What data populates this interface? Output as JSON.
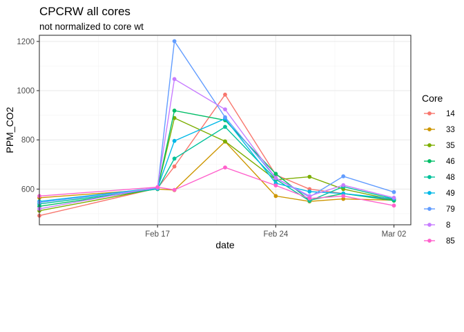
{
  "chart_data": {
    "type": "line",
    "title": "CPCRW all cores",
    "subtitle": "not normalized to core wt",
    "xlabel": "date",
    "ylabel": "PPM_CO2",
    "legend_title": "Core",
    "legend_position": "right",
    "grid": true,
    "x_ticks": [
      "Feb 17",
      "Feb 24",
      "Mar 02"
    ],
    "y_ticks": [
      600,
      800,
      1000,
      1200
    ],
    "x_axis_range": [
      "Feb 10",
      "Mar 03"
    ],
    "ylim": [
      455,
      1225
    ],
    "x": [
      "Feb 10",
      "Feb 17",
      "Feb 18",
      "Feb 21",
      "Feb 24",
      "Feb 26",
      "Feb 28",
      "Mar 02"
    ],
    "series": [
      {
        "name": "14",
        "color": "#F8766D",
        "values": [
          492,
          604,
          692,
          984,
          658,
          600,
          582,
          557
        ]
      },
      {
        "name": "33",
        "color": "#CD9600",
        "values": [
          565,
          600,
          596,
          793,
          572,
          550,
          560,
          555
        ]
      },
      {
        "name": "35",
        "color": "#7CAE00",
        "values": [
          512,
          602,
          889,
          794,
          638,
          650,
          600,
          556
        ]
      },
      {
        "name": "46",
        "color": "#00BE67",
        "values": [
          530,
          601,
          919,
          880,
          662,
          555,
          582,
          553
        ]
      },
      {
        "name": "48",
        "color": "#00C19A",
        "values": [
          540,
          600,
          724,
          853,
          640,
          552,
          610,
          560
        ]
      },
      {
        "name": "49",
        "color": "#00B8E7",
        "values": [
          550,
          605,
          796,
          886,
          624,
          590,
          582,
          560
        ]
      },
      {
        "name": "79",
        "color": "#619CFF",
        "values": [
          546,
          603,
          1201,
          892,
          645,
          568,
          652,
          588
        ]
      },
      {
        "name": "8",
        "color": "#C77CFF",
        "values": [
          520,
          608,
          1047,
          924,
          645,
          572,
          616,
          565
        ]
      },
      {
        "name": "85",
        "color": "#FF61CC",
        "values": [
          572,
          608,
          597,
          688,
          615,
          562,
          572,
          533
        ]
      }
    ]
  }
}
